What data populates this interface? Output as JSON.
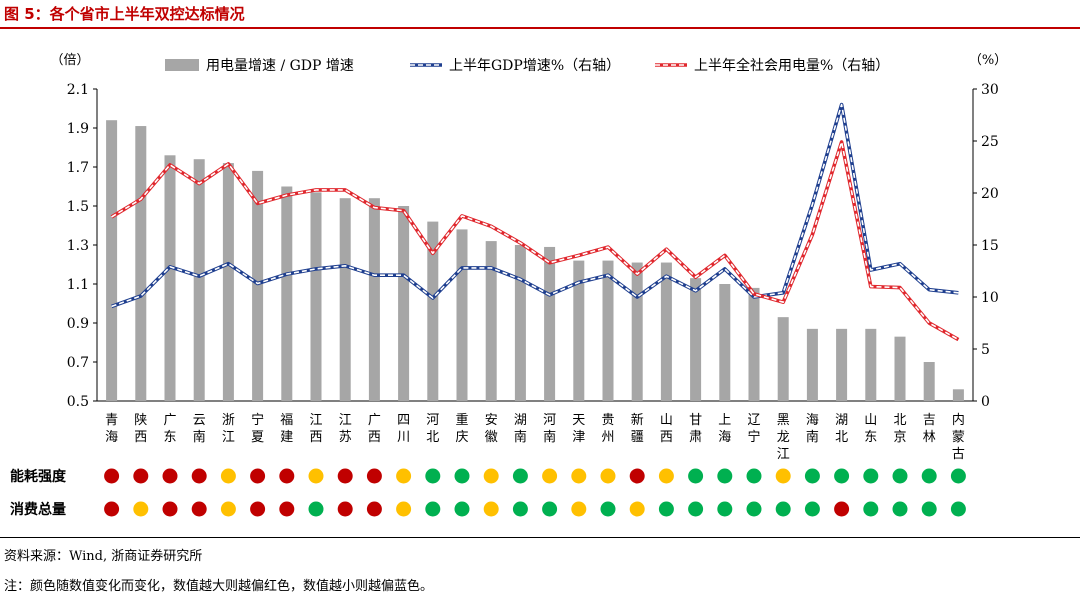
{
  "figure_title": "图 5：各个省市上半年双控达标情况",
  "source_note": "资料来源：Wind, 浙商证券研究所",
  "footnote": "注：颜色随数值变化而变化，数值越大则越偏红色，数值越小则越偏蓝色。",
  "colors": {
    "bar": "#a6a6a6",
    "gdp_line": "#1f3f8f",
    "power_line": "#e0282e",
    "dot_red": "#c00000",
    "dot_yellow": "#ffc000",
    "dot_green": "#00b050"
  },
  "chart_data": {
    "type": "bar",
    "left_unit": "（倍）",
    "right_unit": "（%）",
    "ylim_left": [
      0.5,
      2.1
    ],
    "yticks_left": [
      "0.5",
      "0.7",
      "0.9",
      "1.1",
      "1.3",
      "1.5",
      "1.7",
      "1.9",
      "2.1"
    ],
    "ylim_right": [
      0,
      30
    ],
    "yticks_right": [
      "0",
      "5",
      "10",
      "15",
      "20",
      "25",
      "30"
    ],
    "legend_position": "top",
    "categories": [
      "青海",
      "陕西",
      "广东",
      "云南",
      "浙江",
      "宁夏",
      "福建",
      "江西",
      "江苏",
      "广西",
      "四川",
      "河北",
      "重庆",
      "安徽",
      "湖南",
      "河南",
      "天津",
      "贵州",
      "新疆",
      "山西",
      "甘肃",
      "上海",
      "辽宁",
      "黑龙江",
      "海南",
      "湖北",
      "山东",
      "北京",
      "吉林",
      "内蒙古"
    ],
    "series": [
      {
        "name": "用电量增速 / GDP 增速",
        "axis": "left",
        "kind": "bar",
        "values": [
          1.94,
          1.91,
          1.76,
          1.74,
          1.72,
          1.68,
          1.6,
          1.57,
          1.54,
          1.54,
          1.5,
          1.42,
          1.38,
          1.32,
          1.3,
          1.29,
          1.22,
          1.22,
          1.21,
          1.21,
          1.13,
          1.1,
          1.08,
          0.93,
          0.87,
          0.87,
          0.87,
          0.83,
          0.7,
          0.56
        ]
      },
      {
        "name": "上半年GDP增速%（右轴）",
        "axis": "right",
        "kind": "line",
        "values": [
          9.1,
          10.1,
          12.9,
          12.0,
          13.2,
          11.3,
          12.2,
          12.7,
          13.0,
          12.1,
          12.1,
          9.9,
          12.8,
          12.8,
          11.7,
          10.2,
          11.4,
          12.1,
          10.0,
          12.0,
          10.6,
          12.7,
          10.0,
          10.4,
          18.9,
          28.5,
          12.6,
          13.2,
          10.7,
          10.4
        ]
      },
      {
        "name": "上半年全社会用电量%（右轴）",
        "axis": "right",
        "kind": "line",
        "values": [
          17.7,
          19.4,
          22.7,
          20.9,
          22.8,
          19.0,
          19.8,
          20.3,
          20.3,
          18.6,
          18.3,
          14.2,
          17.8,
          16.8,
          15.2,
          13.3,
          14.0,
          14.8,
          12.2,
          14.6,
          11.9,
          14.0,
          10.3,
          9.5,
          16.0,
          24.9,
          11.0,
          10.9,
          7.5,
          5.9
        ]
      }
    ],
    "rows": [
      {
        "label": "能耗强度",
        "levels": [
          "red",
          "red",
          "red",
          "red",
          "yellow",
          "red",
          "red",
          "yellow",
          "red",
          "red",
          "yellow",
          "green",
          "green",
          "yellow",
          "green",
          "yellow",
          "yellow",
          "yellow",
          "red",
          "yellow",
          "green",
          "green",
          "green",
          "yellow",
          "green",
          "green",
          "green",
          "green",
          "green",
          "green"
        ]
      },
      {
        "label": "消费总量",
        "levels": [
          "red",
          "yellow",
          "red",
          "red",
          "yellow",
          "red",
          "red",
          "green",
          "red",
          "red",
          "yellow",
          "green",
          "green",
          "yellow",
          "green",
          "green",
          "yellow",
          "green",
          "yellow",
          "green",
          "green",
          "green",
          "green",
          "green",
          "green",
          "red",
          "green",
          "green",
          "green",
          "green"
        ]
      }
    ]
  }
}
